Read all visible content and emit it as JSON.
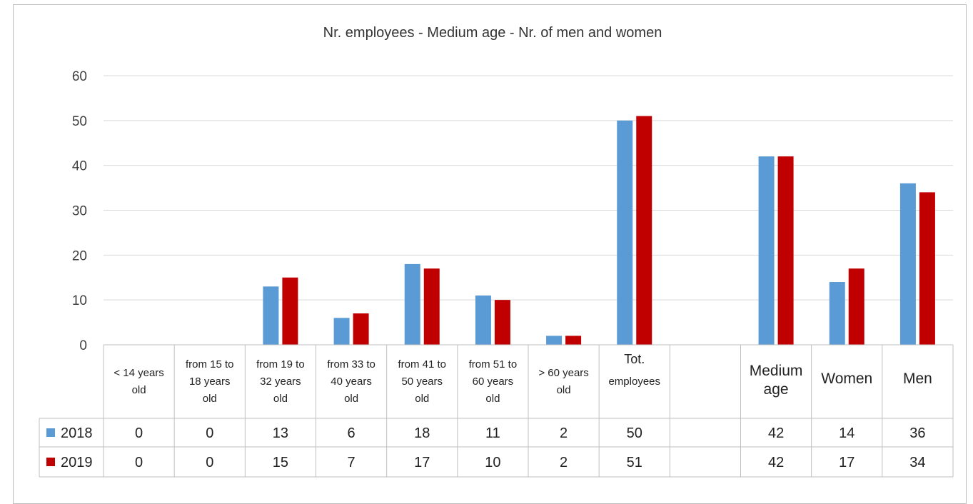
{
  "chart_data": {
    "type": "bar",
    "title": "Nr. employees - Medium age - Nr. of men and women",
    "categories": [
      [
        "<  14 years",
        "old"
      ],
      [
        "from 15 to",
        "18 years",
        "old"
      ],
      [
        "from 19 to",
        "32 years",
        "old"
      ],
      [
        "from 33 to",
        "40 years",
        "old"
      ],
      [
        "from 41 to",
        "50 years",
        "old"
      ],
      [
        "from 51 to",
        "60 years",
        "old"
      ],
      [
        "> 60 years",
        "old"
      ],
      [
        "Tot.",
        "employees"
      ],
      [],
      [
        "Medium",
        "age"
      ],
      [
        "Women"
      ],
      [
        "Men"
      ]
    ],
    "series": [
      {
        "name": "2018",
        "color": "#5b9bd5",
        "values": [
          0,
          0,
          13,
          6,
          18,
          11,
          2,
          50,
          null,
          42,
          14,
          36
        ],
        "labels": [
          "0",
          "0",
          "13",
          "6",
          "18",
          "11",
          "2",
          "50",
          "",
          "42",
          "14",
          "36"
        ]
      },
      {
        "name": "2019",
        "color": "#c00000",
        "values": [
          0,
          0,
          15,
          7,
          17,
          10,
          2,
          51,
          null,
          42,
          17,
          34
        ],
        "labels": [
          "0",
          "0",
          "15",
          "7",
          "17",
          "10",
          "2",
          "51",
          "",
          "42",
          "17",
          "34"
        ]
      }
    ],
    "yticks": [
      "0",
      "10",
      "20",
      "30",
      "40",
      "50",
      "60"
    ],
    "ylim": [
      0,
      60
    ],
    "grid": true,
    "legend": "data-table"
  }
}
